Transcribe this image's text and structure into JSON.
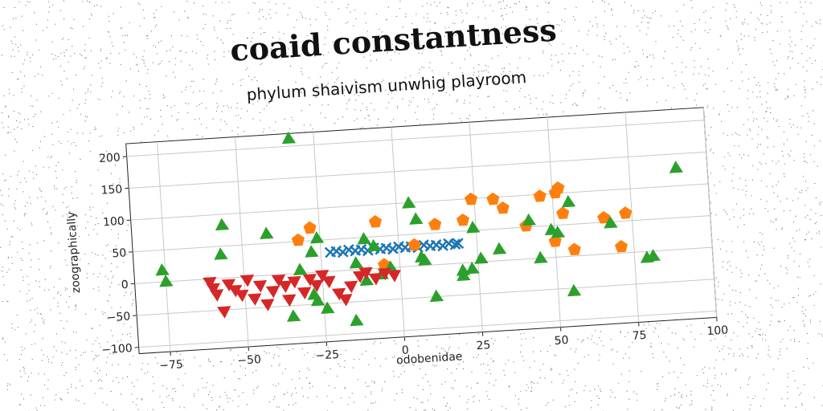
{
  "chart_data": {
    "type": "scatter",
    "title": "coaid constantness",
    "subtitle": "phylum shaivism unwhig playroom",
    "xlabel": "odobenidae",
    "ylabel": "zoographically",
    "xlim": [
      -85,
      100
    ],
    "ylim": [
      -110,
      220
    ],
    "x_ticks": [
      -75,
      -50,
      -25,
      0,
      25,
      50,
      75,
      100
    ],
    "y_ticks": [
      -100,
      -50,
      0,
      50,
      100,
      150,
      200
    ],
    "grid": true,
    "series": [
      {
        "marker": "x",
        "color": "#1f77b4",
        "points": [
          [
            -22,
            30
          ],
          [
            -20,
            31
          ],
          [
            -18,
            29
          ],
          [
            -16,
            32
          ],
          [
            -14,
            30
          ],
          [
            -12,
            31
          ],
          [
            -10,
            29
          ],
          [
            -8,
            32
          ],
          [
            -6,
            30
          ],
          [
            -4,
            31
          ],
          [
            -2,
            29
          ],
          [
            0,
            32
          ],
          [
            2,
            30
          ],
          [
            4,
            31
          ],
          [
            6,
            29
          ],
          [
            8,
            32
          ],
          [
            10,
            30
          ],
          [
            12,
            31
          ],
          [
            14,
            29
          ],
          [
            16,
            32
          ],
          [
            18,
            30
          ],
          [
            19,
            31
          ]
        ]
      },
      {
        "marker": "pentagon",
        "color": "#ff7f0e",
        "points": [
          [
            -32,
            52
          ],
          [
            -28,
            70
          ],
          [
            -7,
            73
          ],
          [
            5,
            33
          ],
          [
            -5,
            5
          ],
          [
            12,
            63
          ],
          [
            21,
            67
          ],
          [
            24,
            99
          ],
          [
            31,
            97
          ],
          [
            34,
            82
          ],
          [
            41,
            52
          ],
          [
            46,
            97
          ],
          [
            50,
            25
          ],
          [
            51,
            101
          ],
          [
            52,
            108
          ],
          [
            53,
            68
          ],
          [
            56,
            10
          ],
          [
            66,
            57
          ],
          [
            71,
            10
          ],
          [
            73,
            62
          ]
        ]
      },
      {
        "marker": "triangle-up",
        "color": "#2ca02c",
        "points": [
          [
            -33,
            212
          ],
          [
            -76,
            18
          ],
          [
            -75,
            0
          ],
          [
            -56,
            83
          ],
          [
            -57,
            37
          ],
          [
            -42,
            65
          ],
          [
            -35,
            -67
          ],
          [
            -32,
            5
          ],
          [
            -28,
            32
          ],
          [
            -26,
            53
          ],
          [
            -28,
            -35
          ],
          [
            -27,
            -45
          ],
          [
            -24,
            -58
          ],
          [
            -15,
            -80
          ],
          [
            -11,
            47
          ],
          [
            -14,
            10
          ],
          [
            -11,
            -18
          ],
          [
            -8,
            35
          ],
          [
            -6,
            -10
          ],
          [
            -3,
            0
          ],
          [
            4,
            99
          ],
          [
            6,
            73
          ],
          [
            7,
            13
          ],
          [
            8,
            8
          ],
          [
            11,
            -50
          ],
          [
            20,
            -12
          ],
          [
            20,
            -20
          ],
          [
            23,
            -10
          ],
          [
            24,
            54
          ],
          [
            26,
            5
          ],
          [
            32,
            18
          ],
          [
            42,
            60
          ],
          [
            45,
            0
          ],
          [
            49,
            43
          ],
          [
            51,
            38
          ],
          [
            55,
            -55
          ],
          [
            55,
            85
          ],
          [
            68,
            48
          ],
          [
            79,
            -10
          ],
          [
            81,
            -8
          ],
          [
            90,
            128
          ]
        ]
      },
      {
        "marker": "triangle-down",
        "color": "#d62728",
        "points": [
          [
            -61,
            -5
          ],
          [
            -60,
            -15
          ],
          [
            -59,
            -25
          ],
          [
            -57,
            -52
          ],
          [
            -55,
            -10
          ],
          [
            -53,
            -20
          ],
          [
            -51,
            -28
          ],
          [
            -49,
            -5
          ],
          [
            -47,
            -35
          ],
          [
            -45,
            -15
          ],
          [
            -43,
            -45
          ],
          [
            -41,
            -25
          ],
          [
            -39,
            -8
          ],
          [
            -37,
            -18
          ],
          [
            -36,
            -40
          ],
          [
            -34,
            -12
          ],
          [
            -31,
            -30
          ],
          [
            -29,
            -10
          ],
          [
            -27,
            -20
          ],
          [
            -25,
            -5
          ],
          [
            -23,
            -15
          ],
          [
            -20,
            -35
          ],
          [
            -18,
            -45
          ],
          [
            -16,
            -25
          ],
          [
            -13,
            -10
          ],
          [
            -11,
            -5
          ],
          [
            -8,
            -15
          ],
          [
            -5,
            -8
          ],
          [
            -2,
            -12
          ]
        ]
      }
    ]
  }
}
